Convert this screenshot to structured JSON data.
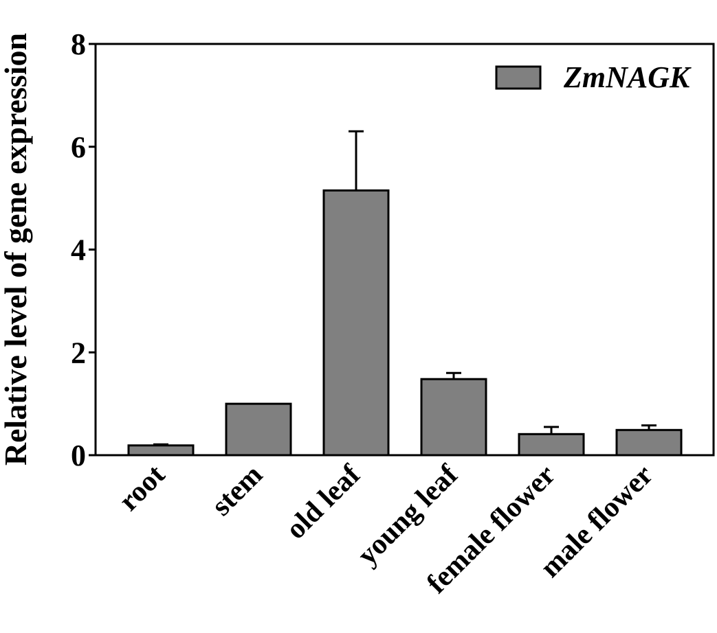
{
  "chart_data": {
    "type": "bar",
    "title": "",
    "xlabel": "",
    "ylabel": "Relative level of gene expression",
    "ylim": [
      0,
      8
    ],
    "yticks": [
      0,
      2,
      4,
      6,
      8
    ],
    "grid": false,
    "legend_position": "top-right",
    "categories": [
      "root",
      "stem",
      "old leaf",
      "young leaf",
      "female flower",
      "male flower"
    ],
    "series": [
      {
        "name": "ZmNAGK",
        "color": "#808080",
        "values": [
          0.19,
          1.0,
          5.15,
          1.48,
          0.41,
          0.49
        ],
        "error": [
          0.02,
          0.0,
          1.15,
          0.12,
          0.14,
          0.09
        ]
      }
    ]
  }
}
